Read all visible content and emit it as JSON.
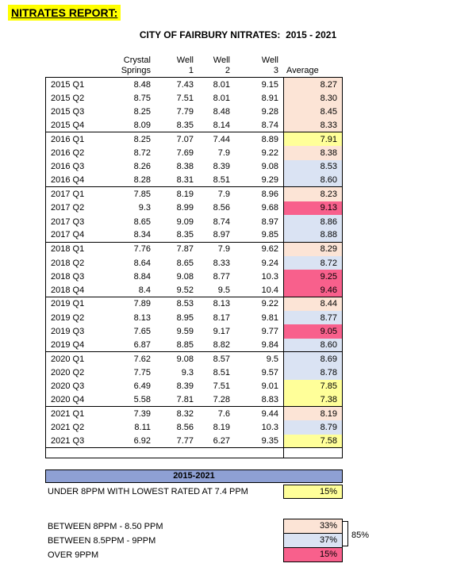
{
  "page": {
    "title": "NITRATES REPORT:",
    "subtitle": "CITY OF FAIRBURY NITRATES:  2015 - 2021"
  },
  "colors": {
    "highlight_yellow": "#FFFF00",
    "peach": "#FCE4D6",
    "light_blue": "#DAE3F3",
    "pink": "#F8608C",
    "pale_yellow": "#FFFF99",
    "header_blue": "#8EA0D4"
  },
  "table": {
    "col_headers": {
      "site": "Crystal Springs",
      "well1": [
        "Well",
        "1"
      ],
      "well2": [
        "Well",
        "2"
      ],
      "well3": [
        "Well",
        "3"
      ],
      "average": "Average"
    },
    "rows": [
      {
        "quarter": "2015 Q1",
        "cs": "8.48",
        "w1": "7.43",
        "w2": "8.01",
        "w3": "9.15",
        "avg": "8.27",
        "avg_color": "peach",
        "year_end": false
      },
      {
        "quarter": "2015 Q2",
        "cs": "8.75",
        "w1": "7.51",
        "w2": "8.01",
        "w3": "8.91",
        "avg": "8.30",
        "avg_color": "peach",
        "year_end": false
      },
      {
        "quarter": "2015 Q3",
        "cs": "8.25",
        "w1": "7.79",
        "w2": "8.48",
        "w3": "9.28",
        "avg": "8.45",
        "avg_color": "peach",
        "year_end": false
      },
      {
        "quarter": "2015 Q4",
        "cs": "8.09",
        "w1": "8.35",
        "w2": "8.14",
        "w3": "8.74",
        "avg": "8.33",
        "avg_color": "peach",
        "year_end": true
      },
      {
        "quarter": "2016 Q1",
        "cs": "8.25",
        "w1": "7.07",
        "w2": "7.44",
        "w3": "8.89",
        "avg": "7.91",
        "avg_color": "pale_yellow",
        "year_end": false
      },
      {
        "quarter": "2016 Q2",
        "cs": "8.72",
        "w1": "7.69",
        "w2": "7.9",
        "w3": "9.22",
        "avg": "8.38",
        "avg_color": "peach",
        "year_end": false
      },
      {
        "quarter": "2016 Q3",
        "cs": "8.26",
        "w1": "8.38",
        "w2": "8.39",
        "w3": "9.08",
        "avg": "8.53",
        "avg_color": "light_blue",
        "year_end": false
      },
      {
        "quarter": "2016 Q4",
        "cs": "8.28",
        "w1": "8.31",
        "w2": "8.51",
        "w3": "9.29",
        "avg": "8.60",
        "avg_color": "light_blue",
        "year_end": true
      },
      {
        "quarter": "2017 Q1",
        "cs": "7.85",
        "w1": "8.19",
        "w2": "7.9",
        "w3": "8.96",
        "avg": "8.23",
        "avg_color": "peach",
        "year_end": false
      },
      {
        "quarter": "2017 Q2",
        "cs": "9.3",
        "w1": "8.99",
        "w2": "8.56",
        "w3": "9.68",
        "avg": "9.13",
        "avg_color": "pink",
        "year_end": false
      },
      {
        "quarter": "2017 Q3",
        "cs": "8.65",
        "w1": "9.09",
        "w2": "8.74",
        "w3": "8.97",
        "avg": "8.86",
        "avg_color": "light_blue",
        "year_end": false
      },
      {
        "quarter": "2017 Q4",
        "cs": "8.34",
        "w1": "8.35",
        "w2": "8.97",
        "w3": "9.85",
        "avg": "8.88",
        "avg_color": "light_blue",
        "year_end": true
      },
      {
        "quarter": "2018 Q1",
        "cs": "7.76",
        "w1": "7.87",
        "w2": "7.9",
        "w3": "9.62",
        "avg": "8.29",
        "avg_color": "peach",
        "year_end": false
      },
      {
        "quarter": "2018 Q2",
        "cs": "8.64",
        "w1": "8.65",
        "w2": "8.33",
        "w3": "9.24",
        "avg": "8.72",
        "avg_color": "light_blue",
        "year_end": false
      },
      {
        "quarter": "2018 Q3",
        "cs": "8.84",
        "w1": "9.08",
        "w2": "8.77",
        "w3": "10.3",
        "avg": "9.25",
        "avg_color": "pink",
        "year_end": false
      },
      {
        "quarter": "2018 Q4",
        "cs": "8.4",
        "w1": "9.52",
        "w2": "9.5",
        "w3": "10.4",
        "avg": "9.46",
        "avg_color": "pink",
        "year_end": true
      },
      {
        "quarter": "2019 Q1",
        "cs": "7.89",
        "w1": "8.53",
        "w2": "8.13",
        "w3": "9.22",
        "avg": "8.44",
        "avg_color": "peach",
        "year_end": false
      },
      {
        "quarter": "2019 Q2",
        "cs": "8.13",
        "w1": "8.95",
        "w2": "8.17",
        "w3": "9.81",
        "avg": "8.77",
        "avg_color": "light_blue",
        "year_end": false
      },
      {
        "quarter": "2019 Q3",
        "cs": "7.65",
        "w1": "9.59",
        "w2": "9.17",
        "w3": "9.77",
        "avg": "9.05",
        "avg_color": "pink",
        "year_end": false
      },
      {
        "quarter": "2019 Q4",
        "cs": "6.87",
        "w1": "8.85",
        "w2": "8.82",
        "w3": "9.84",
        "avg": "8.60",
        "avg_color": "light_blue",
        "year_end": true
      },
      {
        "quarter": "2020 Q1",
        "cs": "7.62",
        "w1": "9.08",
        "w2": "8.57",
        "w3": "9.5",
        "avg": "8.69",
        "avg_color": "light_blue",
        "year_end": false
      },
      {
        "quarter": "2020 Q2",
        "cs": "7.75",
        "w1": "9.3",
        "w2": "8.51",
        "w3": "9.57",
        "avg": "8.78",
        "avg_color": "light_blue",
        "year_end": false
      },
      {
        "quarter": "2020 Q3",
        "cs": "6.49",
        "w1": "8.39",
        "w2": "7.51",
        "w3": "9.01",
        "avg": "7.85",
        "avg_color": "pale_yellow",
        "year_end": false
      },
      {
        "quarter": "2020 Q4",
        "cs": "5.58",
        "w1": "7.81",
        "w2": "7.28",
        "w3": "8.83",
        "avg": "7.38",
        "avg_color": "pale_yellow",
        "year_end": true
      },
      {
        "quarter": "2021 Q1",
        "cs": "7.39",
        "w1": "8.32",
        "w2": "7.6",
        "w3": "9.44",
        "avg": "8.19",
        "avg_color": "peach",
        "year_end": false
      },
      {
        "quarter": "2021 Q2",
        "cs": "8.11",
        "w1": "8.56",
        "w2": "8.19",
        "w3": "10.3",
        "avg": "8.79",
        "avg_color": "light_blue",
        "year_end": false
      },
      {
        "quarter": "2021 Q3",
        "cs": "6.92",
        "w1": "7.77",
        "w2": "6.27",
        "w3": "9.35",
        "avg": "7.58",
        "avg_color": "pale_yellow",
        "year_end": true
      }
    ]
  },
  "summary": {
    "band_title": "2015-2021",
    "under8": {
      "label": "UNDER 8PPM WITH LOWEST RATED AT 7.4 PPM",
      "value": "15%",
      "color": "pale_yellow"
    },
    "breakdown": [
      {
        "label": "BETWEEN 8PPM - 8.50 PPM",
        "value": "33%",
        "color": "peach"
      },
      {
        "label": "BETWEEN 8.5PPM - 9PPM",
        "value": "37%",
        "color": "light_blue"
      },
      {
        "label": "OVER 9PPM",
        "value": "15%",
        "color": "pink"
      }
    ],
    "bracket_total": "85%"
  }
}
